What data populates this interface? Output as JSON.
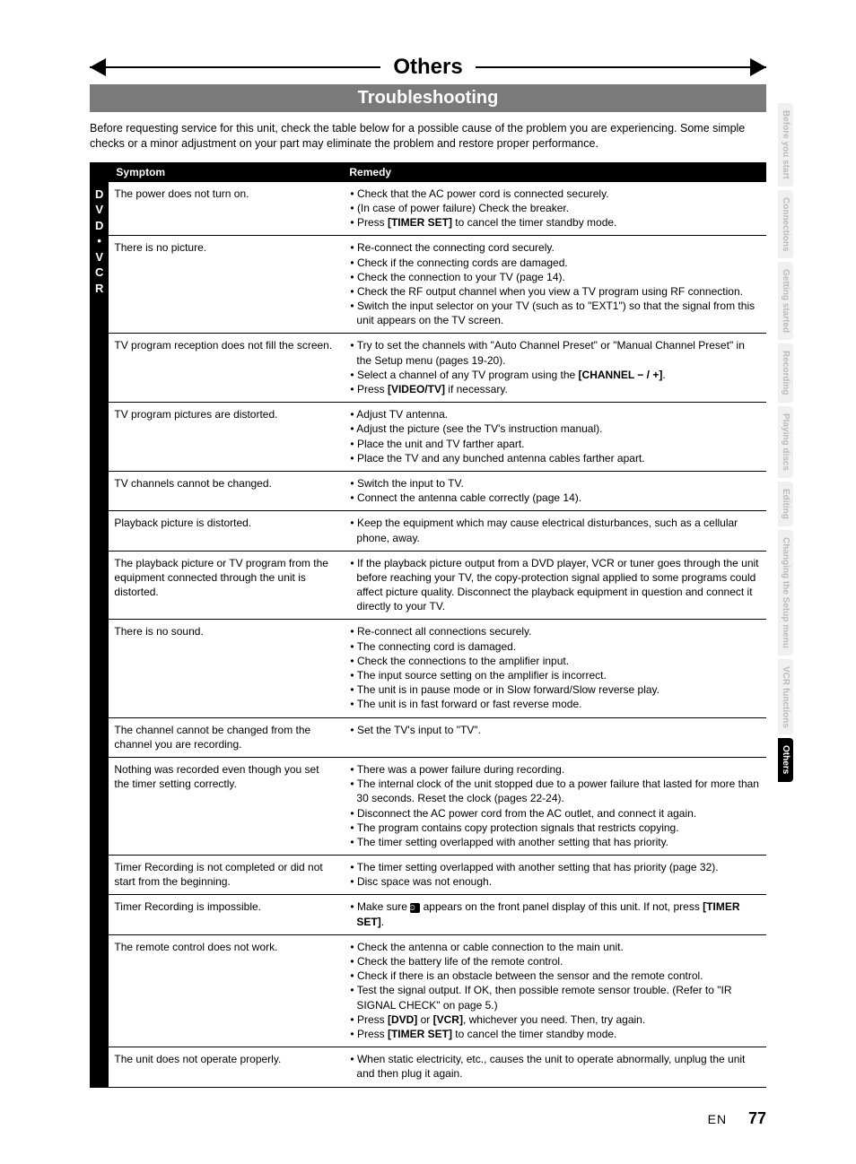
{
  "banner_title": "Others",
  "sub_banner": "Troubleshooting",
  "intro": "Before requesting service for this unit, check the table below for a possible cause of the problem you are experiencing. Some simple checks or a minor adjustment on your part may eliminate the problem and restore proper performance.",
  "columns": {
    "symptom": "Symptom",
    "remedy": "Remedy"
  },
  "side_label": [
    "D",
    "V",
    "D",
    "•",
    "V",
    "C",
    "R"
  ],
  "rows": [
    {
      "symptom": "The power does not turn on.",
      "remedy": [
        "Check that the AC power cord is connected securely.",
        "(In case of power failure) Check the breaker.",
        "Press <b>[TIMER SET]</b> to cancel the timer standby mode."
      ]
    },
    {
      "symptom": "There is no picture.",
      "remedy": [
        "Re-connect the connecting cord securely.",
        "Check if the connecting cords are damaged.",
        "Check the connection to your TV (page 14).",
        "Check the RF output channel when you view a TV program using RF connection.",
        "Switch the input selector on your TV (such as to \"EXT1\") so that the signal from this unit appears on the TV screen."
      ]
    },
    {
      "symptom": "TV program reception does not fill the screen.",
      "remedy": [
        "Try to set the channels with \"Auto Channel Preset\" or \"Manual Channel Preset\" in the Setup menu (pages 19-20).",
        "Select a channel of any TV program using the <b>[CHANNEL − / +]</b>.",
        "Press <b>[VIDEO/TV]</b> if necessary."
      ]
    },
    {
      "symptom": "TV program pictures are distorted.",
      "remedy": [
        "Adjust TV antenna.",
        "Adjust the picture (see the TV's instruction manual).",
        "Place the unit and TV farther apart.",
        "Place the TV and any bunched antenna cables farther apart."
      ]
    },
    {
      "symptom": "TV channels cannot be changed.",
      "remedy": [
        "Switch the input to TV.",
        "Connect the antenna cable correctly (page 14)."
      ]
    },
    {
      "symptom": "Playback picture is distorted.",
      "remedy": [
        "Keep the equipment which may cause electrical disturbances, such as a cellular phone, away."
      ]
    },
    {
      "symptom": "The playback picture or TV program from the equipment connected through the unit is distorted.",
      "remedy": [
        "If the playback picture output from a DVD player, VCR or tuner goes through the unit before reaching your TV, the copy-protection signal applied to some programs could affect picture quality. Disconnect the playback equipment in question and connect it directly to your TV."
      ]
    },
    {
      "symptom": "There is no sound.",
      "remedy": [
        "Re-connect all connections securely.",
        "The connecting cord is damaged.",
        "Check the connections to the amplifier input.",
        "The input source setting on the amplifier is incorrect.",
        "The unit is in pause mode or in Slow forward/Slow reverse play.",
        "The unit is in fast forward or fast reverse mode."
      ]
    },
    {
      "symptom": "The channel cannot be changed from the channel you are recording.",
      "remedy": [
        "Set the TV's input to \"TV\"."
      ]
    },
    {
      "symptom": "Nothing was recorded even though you set the timer setting correctly.",
      "remedy": [
        "There was a power failure during recording.",
        "The internal clock of the unit stopped due to a power failure that lasted for more than 30 seconds. Reset the clock (pages 22-24).",
        "Disconnect the AC power cord from the AC outlet, and connect it again.",
        "The program contains copy protection signals that restricts copying.",
        "The timer setting overlapped with another setting that has priority."
      ]
    },
    {
      "symptom": "Timer Recording is not completed or did not start from the beginning.",
      "remedy": [
        "The timer setting overlapped with another setting that has priority (page 32).",
        "Disc space was not enough."
      ]
    },
    {
      "symptom": "Timer Recording is impossible.",
      "remedy": [
        "Make sure <span class=\"timer-icon\">⏲</span> appears on the front panel display of this unit. If not, press <b>[TIMER SET]</b>."
      ]
    },
    {
      "symptom": "The remote control does not work.",
      "remedy": [
        "Check the antenna or cable connection to the main unit.",
        "Check the battery life of the remote control.",
        "Check if there is an obstacle between the sensor and the remote control.",
        "Test the signal output. If OK, then possible remote sensor trouble. (Refer to \"IR SIGNAL CHECK\" on page 5.)",
        "Press <b>[DVD]</b> or <b>[VCR]</b>, whichever you need. Then, try again.",
        "Press <b>[TIMER SET]</b> to cancel the timer standby mode."
      ]
    },
    {
      "symptom": "The unit does not operate properly.",
      "remedy": [
        "When static electricity, etc., causes the unit to operate abnormally, unplug the unit and then plug it again."
      ]
    }
  ],
  "tabs": [
    {
      "label": "Before you start",
      "active": false
    },
    {
      "label": "Connections",
      "active": false
    },
    {
      "label": "Getting started",
      "active": false
    },
    {
      "label": "Recording",
      "active": false
    },
    {
      "label": "Playing discs",
      "active": false
    },
    {
      "label": "Editing",
      "active": false
    },
    {
      "label": "Changing the Setup menu",
      "active": false
    },
    {
      "label": "VCR functions",
      "active": false
    },
    {
      "label": "Others",
      "active": true
    }
  ],
  "footer": {
    "lang": "EN",
    "page": "77"
  },
  "colors": {
    "banner_bg": "#7a7a7a",
    "black": "#000000",
    "tab_inactive_bg": "#f0f0f0",
    "tab_inactive_fg": "#bbbbbb"
  }
}
